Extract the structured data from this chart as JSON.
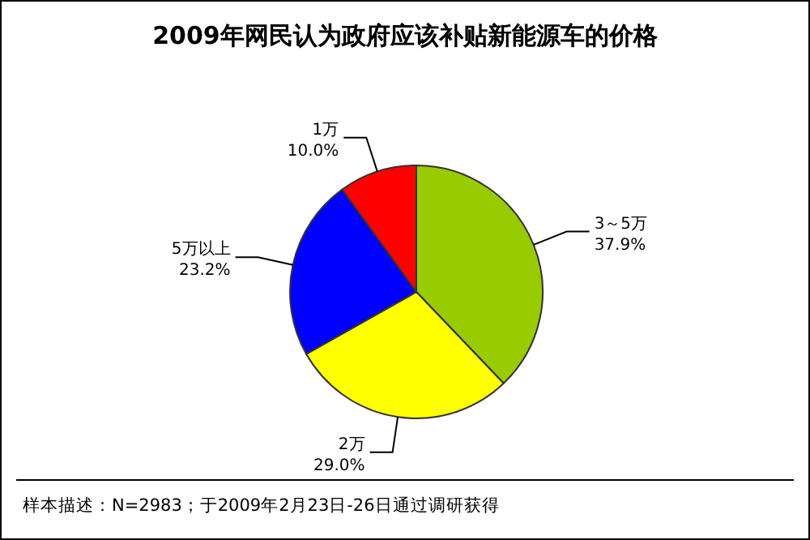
{
  "chart_data": {
    "type": "pie",
    "title": "2009年网民认为政府应该补贴新能源车的价格",
    "categories": [
      "3～5万",
      "2万",
      "5万以上",
      "1万"
    ],
    "values": [
      37.9,
      29.0,
      23.2,
      10.0
    ],
    "value_labels": [
      "37.9%",
      "29.0%",
      "23.2%",
      "10.0%"
    ],
    "colors": [
      "#99cc00",
      "#ffff00",
      "#0000ff",
      "#ff0000"
    ],
    "legend": false,
    "annotations": [
      "样本描述：N=2983；于2009年2月23日-26日通过调研获得"
    ]
  }
}
